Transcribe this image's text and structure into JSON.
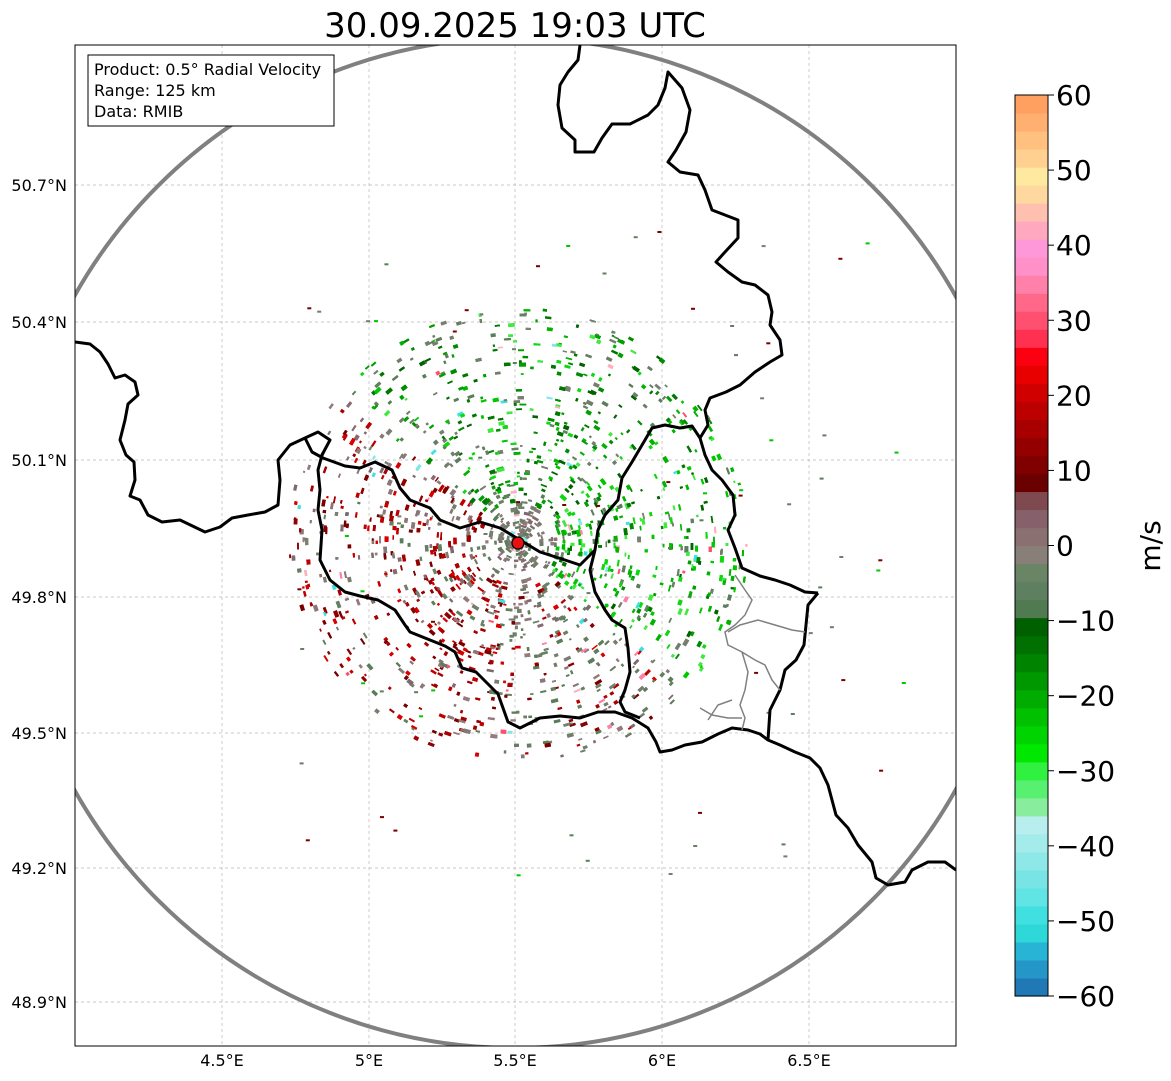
{
  "title": "30.09.2025 19:03 UTC",
  "info": {
    "product": "Product: 0.5° Radial Velocity",
    "range": "Range: 125 km",
    "data": "Data: RMIB"
  },
  "axes": {
    "lon_ticks": [
      "4.5°E",
      "5°E",
      "5.5°E",
      "6°E",
      "6.5°E"
    ],
    "lat_ticks": [
      "50.7°N",
      "50.4°N",
      "50.1°N",
      "49.8°N",
      "49.5°N",
      "49.2°N",
      "48.9°N"
    ]
  },
  "colorbar": {
    "label": "m/s",
    "ticks": [
      "60",
      "50",
      "40",
      "30",
      "20",
      "10",
      "0",
      "−10",
      "−20",
      "−30",
      "−40",
      "−50",
      "−60"
    ],
    "range": [
      -60,
      60
    ],
    "colors": [
      "#2078b4",
      "#2496c8",
      "#28b4d4",
      "#2ed8d8",
      "#40e0e0",
      "#60e4e4",
      "#78e4e6",
      "#8ee8e8",
      "#a4ecec",
      "#b8eeee",
      "#88ee9e",
      "#58f070",
      "#30f040",
      "#00e800",
      "#00d400",
      "#00c000",
      "#00ac00",
      "#009800",
      "#008400",
      "#007000",
      "#006000",
      "#507a50",
      "#5e8060",
      "#6a8466",
      "#888078",
      "#8a7070",
      "#86606a",
      "#7e4a50",
      "#6a0000",
      "#800000",
      "#940000",
      "#a80000",
      "#bc0000",
      "#d00000",
      "#e80000",
      "#fa0010",
      "#ff3050",
      "#ff5070",
      "#ff6888",
      "#ff80a8",
      "#ff90c8",
      "#ff98d8",
      "#ffa8c0",
      "#ffc0b0",
      "#ffd8a0",
      "#ffe8a0",
      "#ffd090",
      "#ffc080",
      "#ffb070",
      "#ffa060"
    ]
  },
  "map_layers": [
    "radar-range-circle",
    "country-borders",
    "velocity-echoes",
    "radar-site"
  ]
}
